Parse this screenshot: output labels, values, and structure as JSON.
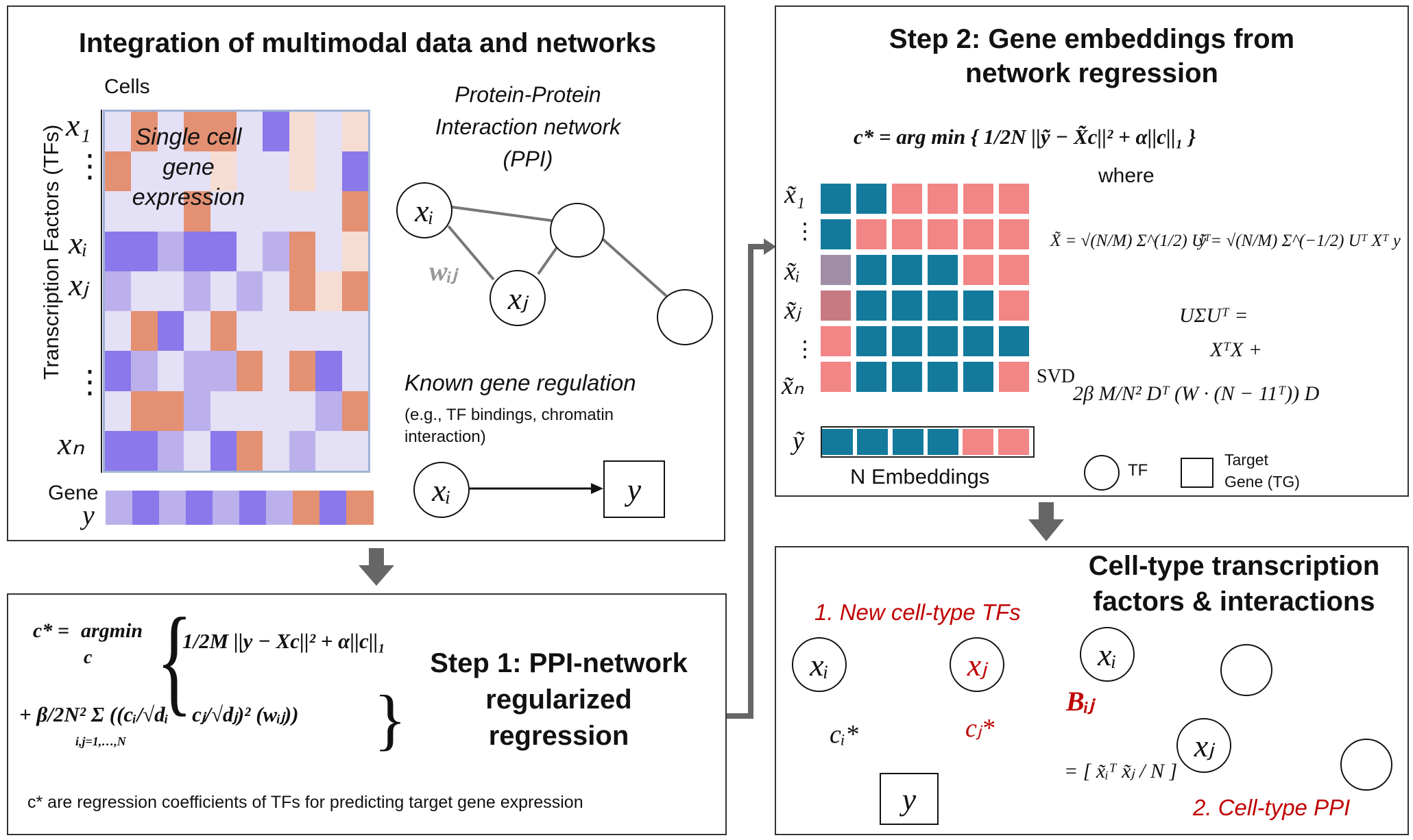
{
  "panel1": {
    "title": "Integration of multimodal data and networks",
    "cells_label": "Cells",
    "tf_axis_label": "Transcription Factors (TFs)",
    "heatmap_overlay": [
      "Single cell",
      "gene",
      "expression"
    ],
    "row_labels": [
      "x₁",
      "⋮",
      "xᵢ",
      "xⱼ",
      "⋮",
      "xₙ"
    ],
    "gene_label": "Gene",
    "gene_var": "y",
    "ppi_title": [
      "Protein-Protein",
      "Interaction network",
      "(PPI)"
    ],
    "node_xi": "xᵢ",
    "node_xj": "xⱼ",
    "edge_weight": "wᵢⱼ",
    "known_reg_title": "Known gene regulation",
    "known_reg_sub": [
      "(e.g., TF bindings, chromatin",
      "interaction)"
    ],
    "reg_tf": "xᵢ",
    "reg_target": "y"
  },
  "panel2": {
    "step_title": [
      "Step 1: PPI-network",
      "regularized",
      "regression"
    ],
    "eq_lhs": "c* =",
    "eq_argmin": "argmin",
    "eq_c": "c",
    "eq_line1": "1/2M ||y − Xc||² + α||c||₁",
    "eq_line2": "+ β/2N² Σ ((cᵢ/√dᵢ − cⱼ/√dⱼ)² (wᵢⱼ))",
    "eq_sum_index": "i,j=1,…,N",
    "note": "c* are regression coefficients of TFs for predicting target gene expression"
  },
  "panel3": {
    "title": [
      "Step 2: Gene embeddings from",
      "network regression"
    ],
    "objective": "c* = arg min { 1/2N ||ỹ − X̃c||² + α||c||₁ }",
    "where": "where",
    "row_labels": [
      "x̃₁",
      "⋮",
      "x̃ᵢ",
      "x̃ⱼ",
      "⋮",
      "x̃ₙ"
    ],
    "y_tilde": "ỹ",
    "embeddings_label": "N Embeddings",
    "x_tilde_def": "X̃ = √(N/M) Σ^(1/2) Uᵀ",
    "y_tilde_def": "ỹ = √(N/M) Σ^(−1/2) Uᵀ Xᵀ y",
    "svd_lhs": "UΣUᵀ =",
    "svd_label": "SVD",
    "svd_line1": "XᵀX +",
    "svd_line2": "2β M/N² Dᵀ (W · (N − 11ᵀ)) D",
    "legend_tf": "TF",
    "legend_tg": [
      "Target",
      "Gene (TG)"
    ]
  },
  "panel4": {
    "title": [
      "Cell-type transcription",
      "factors & interactions"
    ],
    "new_tfs": "1. New cell-type TFs",
    "node_xi": "xᵢ",
    "node_xj": "xⱼ",
    "ci": "cᵢ*",
    "cj": "cⱼ*",
    "target": "y",
    "bij": "Bᵢⱼ",
    "bij_eq": "= [ x̃ᵢᵀ x̃ⱼ / N ]",
    "ppi_label": "2. Cell-type PPI",
    "net_xi": "xᵢ",
    "net_xj": "xⱼ"
  },
  "colors": {
    "orange": "#e39073",
    "peach": "#f6ddd3",
    "lavender": "#e4e0f5",
    "light_purple": "#bcb0ec",
    "purple": "#8b78ea",
    "teal": "#137a9c",
    "salmon": "#f28585",
    "red_text": "#c00000",
    "arrow_gray": "#666666"
  },
  "heatmap": {
    "rows": [
      [
        "lavender",
        "orange",
        "lavender",
        "orange",
        "orange",
        "lavender",
        "purple",
        "peach",
        "lavender",
        "peach"
      ],
      [
        "orange",
        "lavender",
        "lavender",
        "lavender",
        "peach",
        "lavender",
        "lavender",
        "peach",
        "lavender",
        "purple"
      ],
      [
        "lavender",
        "lavender",
        "lavender",
        "orange",
        "lavender",
        "lavender",
        "lavender",
        "lavender",
        "lavender",
        "orange"
      ],
      [
        "purple",
        "purple",
        "light_purple",
        "purple",
        "purple",
        "lavender",
        "light_purple",
        "orange",
        "lavender",
        "peach"
      ],
      [
        "light_purple",
        "lavender",
        "lavender",
        "light_purple",
        "lavender",
        "light_purple",
        "lavender",
        "orange",
        "peach",
        "orange"
      ],
      [
        "lavender",
        "orange",
        "purple",
        "lavender",
        "orange",
        "lavender",
        "lavender",
        "lavender",
        "lavender",
        "lavender"
      ],
      [
        "purple",
        "light_purple",
        "lavender",
        "light_purple",
        "light_purple",
        "orange",
        "lavender",
        "orange",
        "purple",
        "lavender"
      ],
      [
        "lavender",
        "orange",
        "orange",
        "light_purple",
        "lavender",
        "lavender",
        "lavender",
        "lavender",
        "light_purple",
        "orange"
      ],
      [
        "purple",
        "purple",
        "light_purple",
        "lavender",
        "purple",
        "orange",
        "lavender",
        "light_purple",
        "lavender",
        "lavender"
      ]
    ],
    "gene_row": [
      "light_purple",
      "purple",
      "light_purple",
      "purple",
      "light_purple",
      "purple",
      "light_purple",
      "orange",
      "purple",
      "orange"
    ]
  },
  "embedding_matrix": {
    "rows": [
      [
        "teal",
        "teal",
        "salmon",
        "salmon",
        "salmon",
        "salmon"
      ],
      [
        "teal",
        "salmon",
        "salmon",
        "salmon",
        "salmon",
        "salmon"
      ],
      [
        "gray_purple",
        "teal",
        "teal",
        "teal",
        "salmon",
        "salmon"
      ],
      [
        "rose",
        "teal",
        "teal",
        "teal",
        "teal",
        "salmon"
      ],
      [
        "salmon",
        "teal",
        "teal",
        "teal",
        "teal",
        "teal"
      ],
      [
        "salmon",
        "teal",
        "teal",
        "teal",
        "teal",
        "salmon"
      ]
    ],
    "y_row": [
      "teal",
      "teal",
      "teal",
      "teal",
      "salmon",
      "salmon"
    ],
    "gray_purple": "#a08ea8",
    "rose": "#c77a82"
  }
}
